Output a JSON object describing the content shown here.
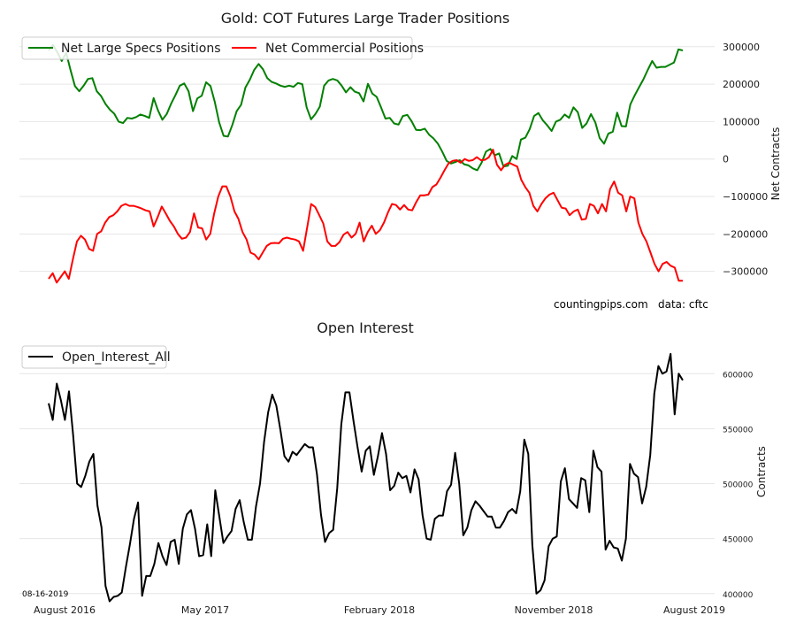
{
  "chart_data": [
    {
      "type": "line",
      "title": "Gold: COT Futures Large Trader Positions",
      "ylabel": "Net Contracts",
      "ylim": [
        -360000,
        335000
      ],
      "yticks": [
        -300000,
        -200000,
        -100000,
        0,
        100000,
        200000,
        300000
      ],
      "ytick_labels": [
        "−300000",
        "−200000",
        "−100000",
        "0",
        "100000",
        "200000",
        "300000"
      ],
      "grid": true,
      "legend": "top-left",
      "series": [
        {
          "name": "Net Large Specs Positions",
          "color": "#008000",
          "values": [
            290000,
            305000,
            285000,
            262000,
            284000,
            238000,
            195000,
            181000,
            196000,
            214000,
            216000,
            181000,
            168000,
            147000,
            132000,
            121000,
            100000,
            96000,
            110000,
            108000,
            112000,
            119000,
            115000,
            110000,
            163000,
            130000,
            105000,
            120000,
            148000,
            171000,
            196000,
            202000,
            181000,
            128000,
            162000,
            169000,
            205000,
            195000,
            152000,
            98000,
            62000,
            60000,
            91000,
            128000,
            145000,
            191000,
            212000,
            238000,
            254000,
            240000,
            216000,
            206000,
            202000,
            196000,
            193000,
            196000,
            193000,
            203000,
            200000,
            138000,
            106000,
            120000,
            140000,
            196000,
            210000,
            214000,
            210000,
            196000,
            178000,
            192000,
            180000,
            176000,
            154000,
            201000,
            175000,
            166000,
            138000,
            108000,
            110000,
            95000,
            92000,
            115000,
            118000,
            101000,
            78000,
            77000,
            81000,
            65000,
            55000,
            41000,
            20000,
            -5000,
            -12000,
            -8000,
            -3000,
            -14000,
            -17000,
            -25000,
            -30000,
            -10000,
            20000,
            27000,
            10000,
            15000,
            -20000,
            -18000,
            8000,
            0,
            52000,
            57000,
            80000,
            115000,
            123000,
            103000,
            90000,
            75000,
            100000,
            105000,
            119000,
            110000,
            138000,
            125000,
            83000,
            95000,
            120000,
            98000,
            56000,
            41000,
            68000,
            73000,
            124000,
            88000,
            87000,
            146000,
            170000,
            192000,
            213000,
            238000,
            262000,
            244000,
            246000,
            246000,
            252000,
            258000,
            293000,
            290000
          ]
        },
        {
          "name": "Net Commercial Positions",
          "color": "#ff0000",
          "values": [
            -320000,
            -305000,
            -330000,
            -315000,
            -300000,
            -320000,
            -268000,
            -220000,
            -205000,
            -215000,
            -240000,
            -245000,
            -200000,
            -193000,
            -170000,
            -155000,
            -150000,
            -140000,
            -125000,
            -120000,
            -125000,
            -125000,
            -128000,
            -132000,
            -137000,
            -140000,
            -180000,
            -155000,
            -127000,
            -145000,
            -165000,
            -180000,
            -200000,
            -213000,
            -210000,
            -195000,
            -145000,
            -183000,
            -185000,
            -215000,
            -200000,
            -145000,
            -100000,
            -73000,
            -73000,
            -100000,
            -140000,
            -160000,
            -195000,
            -215000,
            -250000,
            -255000,
            -268000,
            -250000,
            -232000,
            -225000,
            -224000,
            -225000,
            -213000,
            -210000,
            -213000,
            -215000,
            -220000,
            -245000,
            -183000,
            -120000,
            -128000,
            -150000,
            -172000,
            -220000,
            -232000,
            -232000,
            -222000,
            -202000,
            -195000,
            -210000,
            -200000,
            -170000,
            -220000,
            -195000,
            -178000,
            -200000,
            -190000,
            -170000,
            -143000,
            -120000,
            -123000,
            -135000,
            -123000,
            -135000,
            -137000,
            -115000,
            -97000,
            -97000,
            -95000,
            -75000,
            -68000,
            -50000,
            -30000,
            -12000,
            -5000,
            -3000,
            -10000,
            0,
            -5000,
            -3000,
            5000,
            -3000,
            -2000,
            5000,
            25000,
            -15000,
            -30000,
            -15000,
            -10000,
            -15000,
            -20000,
            -55000,
            -75000,
            -90000,
            -125000,
            -140000,
            -120000,
            -105000,
            -95000,
            -90000,
            -110000,
            -130000,
            -132000,
            -150000,
            -140000,
            -135000,
            -162000,
            -160000,
            -120000,
            -125000,
            -145000,
            -120000,
            -140000,
            -80000,
            -60000,
            -90000,
            -97000,
            -140000,
            -100000,
            -105000,
            -170000,
            -200000,
            -220000,
            -250000,
            -280000,
            -300000,
            -280000,
            -275000,
            -285000,
            -290000,
            -325000,
            -325000
          ]
        }
      ],
      "annotations": [
        "countingpips.com",
        "data: cftc"
      ]
    },
    {
      "type": "line",
      "title": "Open Interest",
      "ylabel": "Contracts",
      "ylim": [
        395000,
        630000
      ],
      "yticks": [
        400000,
        450000,
        500000,
        550000,
        600000
      ],
      "ytick_labels": [
        "400000",
        "450000",
        "500000",
        "550000",
        "600000"
      ],
      "grid": true,
      "legend": "top-left",
      "series": [
        {
          "name": "Open_Interest_All",
          "color": "#000000",
          "values": [
            573000,
            558000,
            591000,
            576000,
            558000,
            584000,
            545000,
            500000,
            497000,
            507000,
            520000,
            527000,
            480000,
            460000,
            407000,
            393000,
            397000,
            398000,
            401000,
            424000,
            445000,
            468000,
            483000,
            398000,
            416000,
            416000,
            427000,
            446000,
            434000,
            426000,
            447000,
            449000,
            427000,
            459000,
            472000,
            476000,
            459000,
            434000,
            435000,
            463000,
            434000,
            494000,
            470000,
            446000,
            452000,
            457000,
            477000,
            485000,
            465000,
            449000,
            449000,
            479000,
            500000,
            538000,
            565000,
            581000,
            571000,
            549000,
            525000,
            520000,
            529000,
            526000,
            531000,
            536000,
            533000,
            533000,
            509000,
            472000,
            447000,
            455000,
            458000,
            496000,
            554000,
            583000,
            583000,
            557000,
            533000,
            511000,
            530000,
            534000,
            508000,
            525000,
            546000,
            527000,
            494000,
            498000,
            510000,
            505000,
            507000,
            492000,
            513000,
            504000,
            471000,
            450000,
            449000,
            468000,
            471000,
            471000,
            493000,
            499000,
            528000,
            500000,
            453000,
            460000,
            476000,
            484000,
            480000,
            475000,
            470000,
            470000,
            460000,
            460000,
            466000,
            474000,
            477000,
            473000,
            493000,
            540000,
            527000,
            444000,
            400000,
            403000,
            412000,
            443000,
            450000,
            452000,
            502000,
            514000,
            486000,
            482000,
            478000,
            505000,
            503000,
            474000,
            530000,
            515000,
            511000,
            440000,
            448000,
            442000,
            441000,
            430000,
            450000,
            518000,
            509000,
            506000,
            482000,
            497000,
            526000,
            582000,
            607000,
            600000,
            602000,
            618000,
            563000,
            600000,
            594000
          ]
        }
      ],
      "x_tick_labels": [
        "August 2016",
        "May 2017",
        "February 2018",
        "November 2018",
        "August 2019"
      ],
      "annotations": [
        "08-16-2019"
      ]
    }
  ]
}
